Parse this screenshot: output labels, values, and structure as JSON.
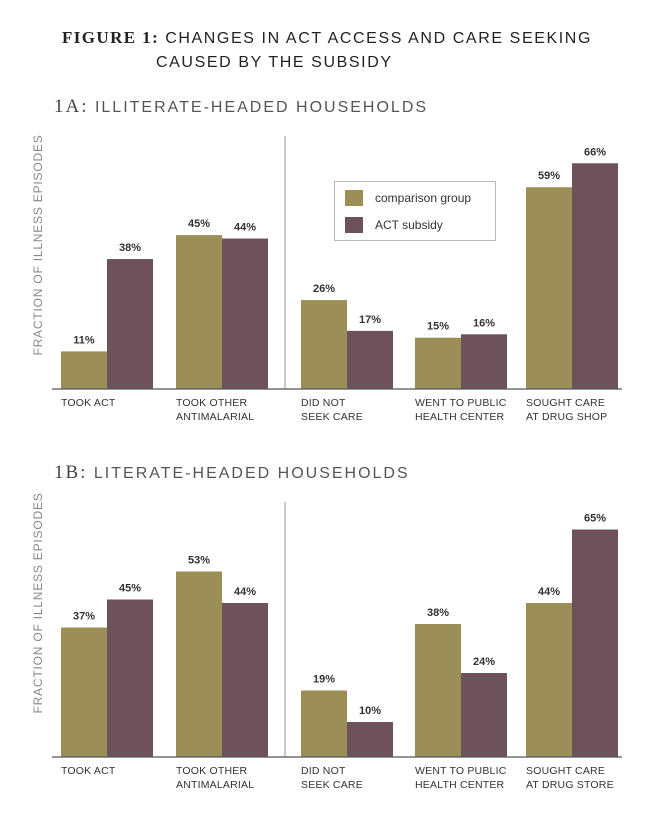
{
  "figure": {
    "lead": "FIGURE 1:",
    "title_line1": "CHANGES IN ACT ACCESS AND CARE SEEKING",
    "title_line2": "CAUSED BY THE SUBSIDY"
  },
  "legend": {
    "comparison": "comparison group",
    "subsidy": "ACT subsidy"
  },
  "colors": {
    "comparison": "#9b8e57",
    "subsidy": "#6d525c",
    "axis": "#555555",
    "divider": "#999999"
  },
  "chart_data": [
    {
      "type": "bar",
      "panel_num": "1A:",
      "panel_title": "ILLITERATE-HEADED HOUSEHOLDS",
      "ylabel": "FRACTION OF ILLNESS EPISODES",
      "categories": [
        [
          "TOOK ACT"
        ],
        [
          "TOOK OTHER",
          "ANTIMALARIAL"
        ],
        [
          "DID NOT",
          "SEEK CARE"
        ],
        [
          "WENT TO PUBLIC",
          "HEALTH CENTER"
        ],
        [
          "SOUGHT CARE",
          "AT DRUG SHOP"
        ]
      ],
      "series": [
        {
          "name": "comparison group",
          "values": [
            11,
            45,
            26,
            15,
            59
          ],
          "labels": [
            "11%",
            "45%",
            "26%",
            "15%",
            "59%"
          ]
        },
        {
          "name": "ACT subsidy",
          "values": [
            38,
            44,
            17,
            16,
            66
          ],
          "labels": [
            "38%",
            "44%",
            "17%",
            "16%",
            "66%"
          ]
        }
      ],
      "ylim": [
        0,
        70
      ],
      "legend_position": "top-center"
    },
    {
      "type": "bar",
      "panel_num": "1B:",
      "panel_title": "LITERATE-HEADED HOUSEHOLDS",
      "ylabel": "FRACTION OF ILLNESS EPISODES",
      "categories": [
        [
          "TOOK ACT"
        ],
        [
          "TOOK OTHER",
          "ANTIMALARIAL"
        ],
        [
          "DID NOT",
          "SEEK CARE"
        ],
        [
          "WENT TO PUBLIC",
          "HEALTH CENTER"
        ],
        [
          "SOUGHT CARE",
          "AT DRUG STORE"
        ]
      ],
      "series": [
        {
          "name": "comparison group",
          "values": [
            37,
            53,
            19,
            38,
            44
          ],
          "labels": [
            "37%",
            "53%",
            "19%",
            "38%",
            "44%"
          ]
        },
        {
          "name": "ACT subsidy",
          "values": [
            45,
            44,
            10,
            24,
            65
          ],
          "labels": [
            "45%",
            "44%",
            "10%",
            "24%",
            "65%"
          ]
        }
      ],
      "ylim": [
        0,
        70
      ]
    }
  ]
}
